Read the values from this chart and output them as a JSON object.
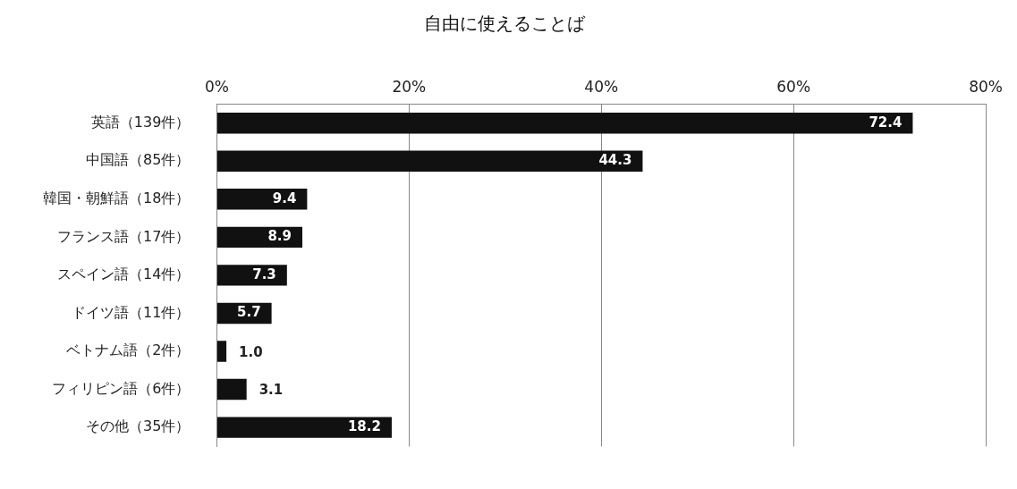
{
  "chart_data": {
    "type": "bar",
    "orientation": "horizontal",
    "title": "自由に使えることば",
    "categories": [
      "英語（139件）",
      "中国語（85件）",
      "韓国・朝鮮語（18件）",
      "フランス語（17件）",
      "スペイン語（14件）",
      "ドイツ語（11件）",
      "ベトナム語（2件）",
      "フィリピン語（6件）",
      "その他（35件）"
    ],
    "values": [
      72.4,
      44.3,
      9.4,
      8.9,
      7.3,
      5.7,
      1.0,
      3.1,
      18.2
    ],
    "value_labels": [
      "72.4",
      "44.3",
      "9.4",
      "8.9",
      "7.3",
      "5.7",
      "1.0",
      "3.1",
      "18.2"
    ],
    "color": "#111111",
    "xlim": [
      0,
      80
    ],
    "xticks": [
      {
        "value": 0,
        "label": "0%"
      },
      {
        "value": 20,
        "label": "20%"
      },
      {
        "value": 40,
        "label": "40%"
      },
      {
        "value": 60,
        "label": "60%"
      },
      {
        "value": 80,
        "label": "80%"
      }
    ],
    "grid": "x",
    "legend": false
  }
}
